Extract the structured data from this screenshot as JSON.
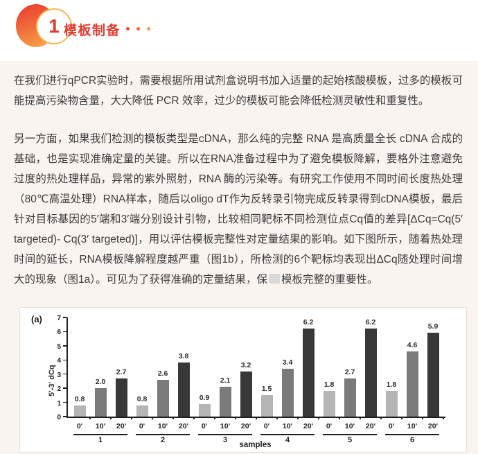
{
  "header": {
    "badge_number": "1",
    "title": "模板制备",
    "accent_red": "#e23c2e",
    "accent_orange": "#f8b64c"
  },
  "paragraphs": {
    "p1": "在我们进行qPCR实验时，需要根据所用试剂盒说明书加入适量的起始核酸模板，过多的模板可能提高污染物含量，大大降低 PCR 效率，过少的模板可能会降低检测灵敏性和重复性。",
    "p2_before": "另一方面，如果我们检测的模板类型是cDNA，那么纯的完整 RNA 是高质量全长 cDNA 合成的基础，也是实现准确定量的关键。所以在RNA准备过程中为了避免模板降解，要格外注意避免过度的热处理样品，异常的紫外照射，RNA 酶的污染等。有研究工作使用不同时间长度热处理（80℃高温处理）RNA样本，随后以oligo dT作为反转录引物完成反转录得到cDNA模板，最后针对目标基因的5′端和3′端分别设计引物，比较相同靶标不同检测位点Cq值的差异[ΔCq=Cq(5′ targeted)- Cq(3′ targeted)]，用以评估模板完整性对定量结果的影响。如下图所示，随着热处理时间的延长，RNA模板降解程度越严重（图1b），所检测的6个靶标均表现出ΔCq随处理时间增大的现象（图1a）。可见为了获得准确的定量结果，保",
    "p2_after": "模板完整的重要性。"
  },
  "chart_data": {
    "type": "bar",
    "panel_label": "(a)",
    "title": "",
    "ylabel": "5'-3' dCq",
    "xlabel": "samples",
    "ylim": [
      0,
      7
    ],
    "yticks": [
      0,
      1,
      2,
      3,
      4,
      5,
      6,
      7
    ],
    "grid": false,
    "legend": "none",
    "categories": [
      "1",
      "2",
      "3",
      "4",
      "5",
      "6"
    ],
    "series": [
      {
        "name": "0'",
        "color": "#b5b5b5",
        "values": [
          0.8,
          0.8,
          0.9,
          1.5,
          1.8,
          1.8
        ]
      },
      {
        "name": "10'",
        "color": "#7a7a7a",
        "values": [
          2.0,
          2.6,
          2.1,
          3.4,
          2.7,
          4.6
        ]
      },
      {
        "name": "20'",
        "color": "#383838",
        "values": [
          2.7,
          3.8,
          3.2,
          6.2,
          6.2,
          5.9
        ]
      }
    ]
  }
}
